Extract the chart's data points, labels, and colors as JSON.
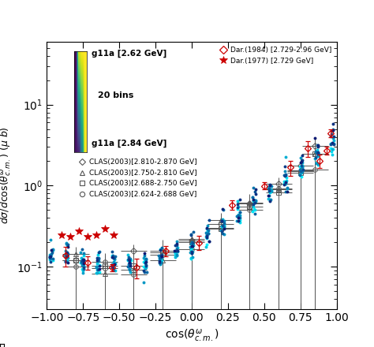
{
  "title": "",
  "xlabel": "cos(\\theta^{\\omega}_{c.m.})",
  "ylabel": "d\\sigma/dcos(\\theta^{\\omega}_{c.m.}) (\\mu b)",
  "xlim": [
    -1.0,
    1.0
  ],
  "ylim_log": [
    0.03,
    60
  ],
  "colorbar_label_top": "g11a [2.62 GeV]",
  "colorbar_label_bot": "g11a [2.84 GeV]",
  "colorbar_bins_text": "20 bins",
  "bg_color": "#ffffff",
  "legend_dar1984_label": "Dar.(1984) [2.729-2.96 GeV]",
  "legend_dar1977_label": "Dar.(1977) [2.729 GeV]",
  "legend_clas1_label": "CLAS(2003)[2.810-2.870 GeV]",
  "legend_clas2_label": "CLAS(2003)[2.750-2.810 GeV]",
  "legend_clas3_label": "CLAS(2003)[2.688-2.750 GeV]",
  "legend_clas4_label": "CLAS(2003)[2.624-2.688 GeV]",
  "cmap_name": "cool",
  "E_min": 2.62,
  "E_max": 2.84,
  "n_bins_g11a": 20,
  "random_seed": 42
}
